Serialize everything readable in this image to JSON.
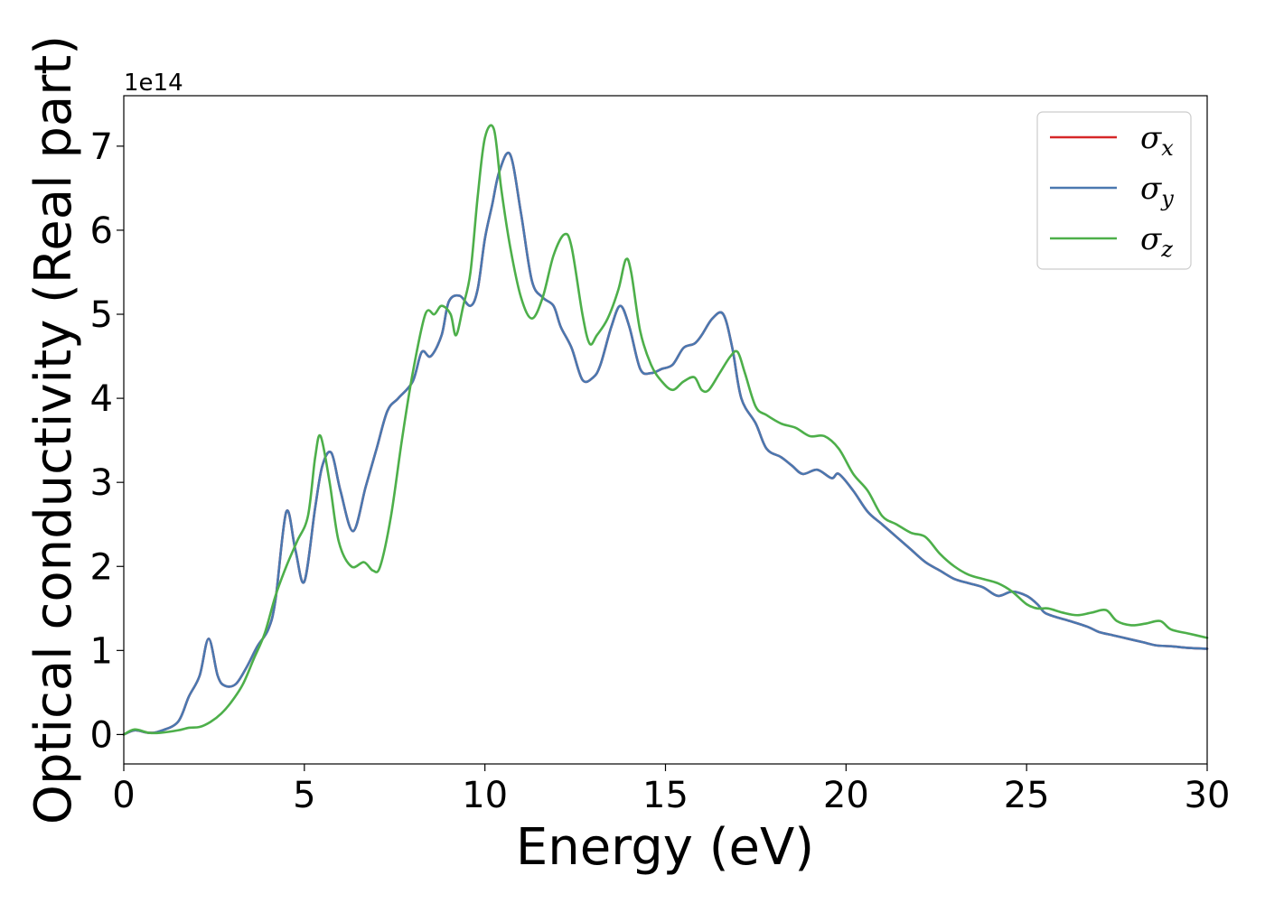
{
  "chart_data": {
    "type": "line",
    "xlabel": "Energy (eV)",
    "ylabel": "Optical conductivity (Real part)",
    "y_offset_label": "1e14",
    "y_scale_factor": 100000000000000.0,
    "xlim": [
      0,
      30
    ],
    "ylim": [
      -0.35,
      7.6
    ],
    "x_ticks": [
      0,
      5,
      10,
      15,
      20,
      25,
      30
    ],
    "x_tick_labels": [
      "0",
      "5",
      "10",
      "15",
      "20",
      "25",
      "30"
    ],
    "y_ticks": [
      0,
      1,
      2,
      3,
      4,
      5,
      6,
      7
    ],
    "y_tick_labels": [
      "0",
      "1",
      "2",
      "3",
      "4",
      "5",
      "6",
      "7"
    ],
    "grid": false,
    "legend_position": "top-right",
    "series": [
      {
        "name": "σx",
        "symbol": "σ",
        "subscript": "x",
        "color": "#d62728",
        "x": [
          0,
          0.3,
          0.7,
          1.0,
          1.5,
          1.8,
          2.1,
          2.35,
          2.6,
          2.8,
          3.1,
          3.4,
          3.7,
          4.0,
          4.2,
          4.5,
          4.75,
          5.0,
          5.3,
          5.5,
          5.75,
          6.0,
          6.35,
          6.7,
          7.0,
          7.3,
          7.6,
          8.0,
          8.25,
          8.5,
          8.8,
          9.0,
          9.3,
          9.6,
          9.8,
          10.0,
          10.2,
          10.4,
          10.7,
          11.0,
          11.3,
          11.6,
          11.9,
          12.1,
          12.4,
          12.7,
          13.0,
          13.2,
          13.5,
          13.75,
          14.0,
          14.3,
          14.6,
          14.9,
          15.2,
          15.5,
          15.8,
          16.0,
          16.3,
          16.6,
          16.85,
          17.1,
          17.5,
          17.8,
          18.2,
          18.5,
          18.8,
          19.2,
          19.6,
          19.8,
          20.2,
          20.6,
          21.0,
          21.4,
          21.8,
          22.2,
          22.6,
          23.0,
          23.4,
          23.8,
          24.2,
          24.6,
          25.0,
          25.3,
          25.5,
          25.8,
          26.2,
          26.7,
          27.0,
          27.4,
          27.8,
          28.2,
          28.6,
          29.0,
          29.5,
          30.0
        ],
        "y": [
          0.0,
          0.05,
          0.02,
          0.04,
          0.15,
          0.45,
          0.7,
          1.14,
          0.7,
          0.58,
          0.6,
          0.8,
          1.05,
          1.25,
          1.6,
          2.65,
          2.2,
          1.82,
          2.7,
          3.2,
          3.35,
          2.9,
          2.42,
          2.95,
          3.4,
          3.85,
          4.0,
          4.2,
          4.55,
          4.5,
          4.75,
          5.15,
          5.22,
          5.1,
          5.3,
          5.9,
          6.3,
          6.7,
          6.9,
          6.2,
          5.4,
          5.2,
          5.1,
          4.85,
          4.6,
          4.22,
          4.25,
          4.4,
          4.85,
          5.1,
          4.85,
          4.35,
          4.3,
          4.35,
          4.4,
          4.6,
          4.65,
          4.75,
          4.95,
          5.0,
          4.6,
          4.0,
          3.7,
          3.4,
          3.3,
          3.2,
          3.1,
          3.15,
          3.05,
          3.1,
          2.9,
          2.65,
          2.5,
          2.35,
          2.2,
          2.05,
          1.95,
          1.85,
          1.8,
          1.75,
          1.65,
          1.7,
          1.65,
          1.55,
          1.45,
          1.4,
          1.35,
          1.28,
          1.22,
          1.18,
          1.14,
          1.1,
          1.06,
          1.05,
          1.03,
          1.02
        ]
      },
      {
        "name": "σy",
        "symbol": "σ",
        "subscript": "y",
        "color": "#4a78b0",
        "x": [
          0,
          0.3,
          0.7,
          1.0,
          1.5,
          1.8,
          2.1,
          2.35,
          2.6,
          2.8,
          3.1,
          3.4,
          3.7,
          4.0,
          4.2,
          4.5,
          4.75,
          5.0,
          5.3,
          5.5,
          5.75,
          6.0,
          6.35,
          6.7,
          7.0,
          7.3,
          7.6,
          8.0,
          8.25,
          8.5,
          8.8,
          9.0,
          9.3,
          9.6,
          9.8,
          10.0,
          10.2,
          10.4,
          10.7,
          11.0,
          11.3,
          11.6,
          11.9,
          12.1,
          12.4,
          12.7,
          13.0,
          13.2,
          13.5,
          13.75,
          14.0,
          14.3,
          14.6,
          14.9,
          15.2,
          15.5,
          15.8,
          16.0,
          16.3,
          16.6,
          16.85,
          17.1,
          17.5,
          17.8,
          18.2,
          18.5,
          18.8,
          19.2,
          19.6,
          19.8,
          20.2,
          20.6,
          21.0,
          21.4,
          21.8,
          22.2,
          22.6,
          23.0,
          23.4,
          23.8,
          24.2,
          24.6,
          25.0,
          25.3,
          25.5,
          25.8,
          26.2,
          26.7,
          27.0,
          27.4,
          27.8,
          28.2,
          28.6,
          29.0,
          29.5,
          30.0
        ],
        "y": [
          0.0,
          0.05,
          0.02,
          0.04,
          0.15,
          0.45,
          0.7,
          1.14,
          0.7,
          0.58,
          0.6,
          0.8,
          1.05,
          1.25,
          1.6,
          2.65,
          2.2,
          1.82,
          2.7,
          3.2,
          3.35,
          2.9,
          2.42,
          2.95,
          3.4,
          3.85,
          4.0,
          4.2,
          4.55,
          4.5,
          4.75,
          5.15,
          5.22,
          5.1,
          5.3,
          5.9,
          6.3,
          6.7,
          6.9,
          6.2,
          5.4,
          5.2,
          5.1,
          4.85,
          4.6,
          4.22,
          4.25,
          4.4,
          4.85,
          5.1,
          4.85,
          4.35,
          4.3,
          4.35,
          4.4,
          4.6,
          4.65,
          4.75,
          4.95,
          5.0,
          4.6,
          4.0,
          3.7,
          3.4,
          3.3,
          3.2,
          3.1,
          3.15,
          3.05,
          3.1,
          2.9,
          2.65,
          2.5,
          2.35,
          2.2,
          2.05,
          1.95,
          1.85,
          1.8,
          1.75,
          1.65,
          1.7,
          1.65,
          1.55,
          1.45,
          1.4,
          1.35,
          1.28,
          1.22,
          1.18,
          1.14,
          1.1,
          1.06,
          1.05,
          1.03,
          1.02
        ]
      },
      {
        "name": "σz",
        "symbol": "σ",
        "subscript": "z",
        "color": "#4daf4a",
        "x": [
          0,
          0.3,
          0.7,
          1.0,
          1.5,
          1.8,
          2.1,
          2.4,
          2.7,
          3.0,
          3.3,
          3.6,
          3.9,
          4.2,
          4.5,
          4.8,
          5.1,
          5.3,
          5.45,
          5.7,
          5.95,
          6.3,
          6.65,
          6.9,
          7.1,
          7.4,
          7.7,
          8.0,
          8.35,
          8.6,
          8.8,
          9.05,
          9.2,
          9.4,
          9.6,
          9.8,
          10.0,
          10.25,
          10.45,
          10.7,
          11.0,
          11.3,
          11.6,
          11.9,
          12.2,
          12.4,
          12.7,
          12.9,
          13.1,
          13.4,
          13.7,
          13.9,
          14.05,
          14.3,
          14.6,
          14.9,
          15.2,
          15.5,
          15.8,
          16.0,
          16.2,
          16.5,
          16.8,
          17.0,
          17.2,
          17.5,
          17.8,
          18.2,
          18.6,
          19.0,
          19.4,
          19.8,
          20.2,
          20.6,
          21.0,
          21.4,
          21.8,
          22.2,
          22.6,
          23.0,
          23.4,
          23.8,
          24.2,
          24.6,
          25.0,
          25.3,
          25.6,
          26.0,
          26.4,
          26.8,
          27.2,
          27.5,
          27.9,
          28.3,
          28.7,
          29.0,
          29.5,
          30.0
        ],
        "y": [
          0.0,
          0.06,
          0.02,
          0.02,
          0.05,
          0.08,
          0.09,
          0.15,
          0.25,
          0.4,
          0.6,
          0.9,
          1.2,
          1.65,
          2.0,
          2.3,
          2.6,
          3.3,
          3.55,
          3.0,
          2.3,
          2.0,
          2.05,
          1.95,
          2.0,
          2.6,
          3.5,
          4.3,
          5.0,
          5.0,
          5.1,
          5.0,
          4.75,
          5.1,
          5.5,
          6.4,
          7.1,
          7.2,
          6.5,
          5.8,
          5.2,
          4.95,
          5.2,
          5.7,
          5.95,
          5.8,
          5.0,
          4.65,
          4.75,
          4.95,
          5.3,
          5.65,
          5.5,
          4.8,
          4.4,
          4.2,
          4.1,
          4.2,
          4.25,
          4.1,
          4.1,
          4.3,
          4.5,
          4.55,
          4.3,
          3.9,
          3.8,
          3.7,
          3.65,
          3.55,
          3.55,
          3.4,
          3.1,
          2.9,
          2.6,
          2.5,
          2.4,
          2.35,
          2.15,
          2.0,
          1.9,
          1.85,
          1.8,
          1.7,
          1.55,
          1.5,
          1.5,
          1.45,
          1.42,
          1.45,
          1.48,
          1.35,
          1.3,
          1.32,
          1.35,
          1.25,
          1.2,
          1.15
        ]
      }
    ]
  }
}
